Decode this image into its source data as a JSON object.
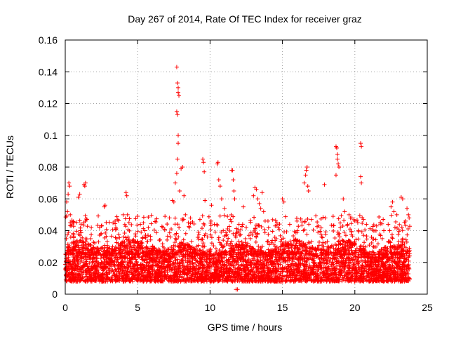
{
  "chart_data": {
    "type": "scatter",
    "title": "Day 267 of 2014, Rate Of TEC Index for receiver graz",
    "xlabel": "GPS time / hours",
    "ylabel": "ROTI / TECUs",
    "xlim": [
      0,
      25
    ],
    "ylim": [
      0,
      0.16
    ],
    "grid": true,
    "marker": "+",
    "series_color": "#ff0000",
    "x_ticks": [
      "0",
      "5",
      "10",
      "15",
      "20",
      "25"
    ],
    "y_ticks": [
      "0",
      "0.02",
      "0.04",
      "0.06",
      "0.08",
      "0.1",
      "0.12",
      "0.14",
      "0.16"
    ],
    "x_tick_values": [
      0,
      5,
      10,
      15,
      20,
      25
    ],
    "y_tick_values": [
      0,
      0.02,
      0.04,
      0.06,
      0.08,
      0.1,
      0.12,
      0.14,
      0.16
    ],
    "data_x_range": [
      0,
      23.8
    ],
    "baseline_band": [
      0.008,
      0.03
    ],
    "series": [
      {
        "name": "ROTI",
        "points": [
          [
            0.1,
            0.058
          ],
          [
            0.15,
            0.052
          ],
          [
            0.2,
            0.063
          ],
          [
            0.25,
            0.07
          ],
          [
            0.3,
            0.068
          ],
          [
            0.35,
            0.05
          ],
          [
            0.4,
            0.043
          ],
          [
            0.6,
            0.045
          ],
          [
            0.9,
            0.061
          ],
          [
            1.0,
            0.063
          ],
          [
            1.3,
            0.069
          ],
          [
            1.35,
            0.068
          ],
          [
            1.4,
            0.07
          ],
          [
            1.5,
            0.047
          ],
          [
            2.7,
            0.055
          ],
          [
            2.75,
            0.056
          ],
          [
            3.5,
            0.041
          ],
          [
            4.0,
            0.05
          ],
          [
            4.2,
            0.064
          ],
          [
            4.25,
            0.062
          ],
          [
            4.3,
            0.05
          ],
          [
            4.4,
            0.045
          ],
          [
            5.5,
            0.04
          ],
          [
            6.5,
            0.034
          ],
          [
            7.2,
            0.048
          ],
          [
            7.4,
            0.059
          ],
          [
            7.5,
            0.058
          ],
          [
            7.7,
            0.143
          ],
          [
            7.75,
            0.133
          ],
          [
            7.8,
            0.13
          ],
          [
            7.8,
            0.127
          ],
          [
            7.85,
            0.125
          ],
          [
            7.7,
            0.115
          ],
          [
            7.75,
            0.113
          ],
          [
            7.8,
            0.1
          ],
          [
            7.8,
            0.095
          ],
          [
            7.75,
            0.085
          ],
          [
            7.7,
            0.076
          ],
          [
            7.6,
            0.07
          ],
          [
            7.9,
            0.065
          ],
          [
            8.0,
            0.079
          ],
          [
            8.1,
            0.08
          ],
          [
            8.2,
            0.062
          ],
          [
            8.3,
            0.05
          ],
          [
            8.5,
            0.045
          ],
          [
            9.2,
            0.039
          ],
          [
            9.5,
            0.085
          ],
          [
            9.55,
            0.083
          ],
          [
            9.6,
            0.077
          ],
          [
            9.65,
            0.059
          ],
          [
            10.1,
            0.056
          ],
          [
            10.3,
            0.044
          ],
          [
            10.5,
            0.082
          ],
          [
            10.55,
            0.083
          ],
          [
            10.6,
            0.072
          ],
          [
            10.7,
            0.068
          ],
          [
            10.8,
            0.06
          ],
          [
            11.0,
            0.054
          ],
          [
            11.2,
            0.049
          ],
          [
            11.4,
            0.047
          ],
          [
            11.5,
            0.078
          ],
          [
            11.55,
            0.078
          ],
          [
            11.6,
            0.072
          ],
          [
            11.65,
            0.065
          ],
          [
            11.7,
            0.06
          ],
          [
            11.8,
            0.003
          ],
          [
            11.9,
            0.003
          ],
          [
            12.0,
            0.044
          ],
          [
            12.3,
            0.055
          ],
          [
            12.5,
            0.042
          ],
          [
            13.0,
            0.062
          ],
          [
            13.1,
            0.067
          ],
          [
            13.2,
            0.066
          ],
          [
            13.3,
            0.06
          ],
          [
            13.4,
            0.057
          ],
          [
            13.5,
            0.054
          ],
          [
            13.6,
            0.064
          ],
          [
            13.7,
            0.052
          ],
          [
            14.0,
            0.046
          ],
          [
            14.5,
            0.043
          ],
          [
            15.0,
            0.06
          ],
          [
            15.1,
            0.058
          ],
          [
            15.5,
            0.044
          ],
          [
            16.0,
            0.046
          ],
          [
            16.5,
            0.07
          ],
          [
            16.6,
            0.075
          ],
          [
            16.65,
            0.078
          ],
          [
            16.7,
            0.08
          ],
          [
            16.75,
            0.068
          ],
          [
            16.8,
            0.065
          ],
          [
            17.0,
            0.047
          ],
          [
            17.5,
            0.043
          ],
          [
            17.9,
            0.069
          ],
          [
            18.5,
            0.049
          ],
          [
            18.7,
            0.093
          ],
          [
            18.75,
            0.092
          ],
          [
            18.8,
            0.088
          ],
          [
            18.8,
            0.085
          ],
          [
            18.85,
            0.082
          ],
          [
            18.9,
            0.08
          ],
          [
            18.7,
            0.075
          ],
          [
            19.2,
            0.06
          ],
          [
            19.3,
            0.052
          ],
          [
            19.5,
            0.044
          ],
          [
            19.6,
            0.05
          ],
          [
            19.8,
            0.048
          ],
          [
            20.0,
            0.046
          ],
          [
            20.2,
            0.045
          ],
          [
            20.4,
            0.095
          ],
          [
            20.45,
            0.093
          ],
          [
            20.4,
            0.074
          ],
          [
            20.45,
            0.07
          ],
          [
            20.6,
            0.047
          ],
          [
            20.8,
            0.044
          ],
          [
            21.5,
            0.043
          ],
          [
            22.0,
            0.04
          ],
          [
            22.3,
            0.044
          ],
          [
            22.5,
            0.055
          ],
          [
            22.6,
            0.058
          ],
          [
            22.7,
            0.052
          ],
          [
            22.9,
            0.05
          ],
          [
            23.2,
            0.061
          ],
          [
            23.3,
            0.06
          ],
          [
            23.5,
            0.046
          ],
          [
            23.6,
            0.054
          ],
          [
            23.7,
            0.05
          ],
          [
            23.75,
            0.048
          ]
        ]
      }
    ]
  }
}
